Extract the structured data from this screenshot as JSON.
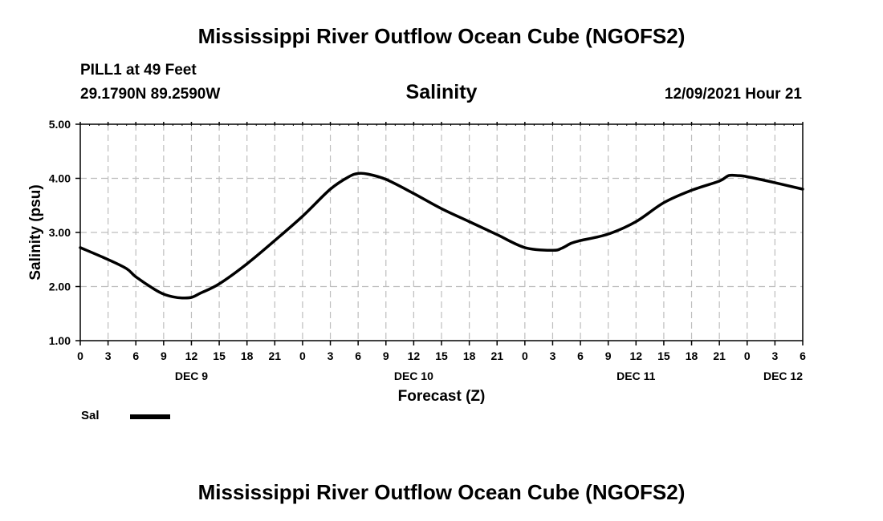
{
  "header": {
    "title": "Mississippi River Outflow Ocean Cube (NGOFS2)",
    "station": "PILL1 at 49 Feet",
    "coords": "29.1790N  89.2590W",
    "parameter": "Salinity",
    "timestamp": "12/09/2021 Hour 21"
  },
  "footer": {
    "title": "Mississippi River Outflow Ocean Cube (NGOFS2)"
  },
  "chart_data": {
    "type": "line",
    "title": "Salinity",
    "xlabel": "Forecast (Z)",
    "ylabel": "Salinity (psu)",
    "ylim": [
      1.0,
      5.0
    ],
    "yticks": [
      "1.00",
      "2.00",
      "3.00",
      "4.00",
      "5.00"
    ],
    "xticks": [
      "0",
      "3",
      "6",
      "9",
      "12",
      "15",
      "18",
      "21",
      "0",
      "3",
      "6",
      "9",
      "12",
      "15",
      "18",
      "21",
      "0",
      "3",
      "6",
      "9",
      "12",
      "15",
      "18",
      "21",
      "0",
      "3",
      "6"
    ],
    "date_labels": [
      {
        "label": "DEC 9",
        "hour": 12
      },
      {
        "label": "DEC 10",
        "hour": 36
      },
      {
        "label": "DEC 11",
        "hour": 60
      },
      {
        "label": "DEC 12",
        "hour": 78
      }
    ],
    "xlim_hours": [
      0,
      78
    ],
    "grid": true,
    "legend": {
      "position": "bottom-left",
      "entries": [
        {
          "name": "Sal",
          "color": "#000000"
        }
      ]
    },
    "series": [
      {
        "name": "Sal",
        "color": "#000000",
        "x_hours": [
          0,
          3,
          5,
          6,
          8,
          9,
          10,
          11,
          12,
          13,
          15,
          18,
          21,
          24,
          27,
          29,
          30,
          31,
          33,
          36,
          39,
          42,
          45,
          48,
          51,
          52,
          53,
          54,
          57,
          60,
          63,
          66,
          69,
          70,
          71,
          72,
          75,
          78
        ],
        "values": [
          2.72,
          2.5,
          2.33,
          2.18,
          1.95,
          1.86,
          1.81,
          1.79,
          1.8,
          1.88,
          2.05,
          2.42,
          2.85,
          3.3,
          3.8,
          4.03,
          4.09,
          4.08,
          3.98,
          3.72,
          3.44,
          3.2,
          2.96,
          2.72,
          2.67,
          2.71,
          2.8,
          2.85,
          2.97,
          3.2,
          3.55,
          3.78,
          3.95,
          4.05,
          4.05,
          4.03,
          3.92,
          3.8
        ]
      }
    ]
  }
}
